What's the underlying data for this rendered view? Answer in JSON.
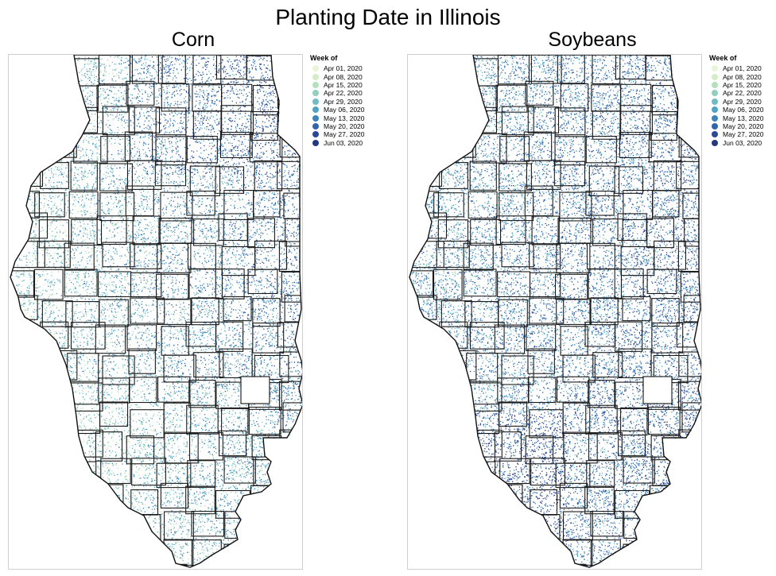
{
  "title": "Planting Date in Illinois",
  "legend_title": "Week of",
  "legend_items": [
    {
      "label": "Apr 01, 2020",
      "color": "#e9f5d9"
    },
    {
      "label": "Apr 08, 2020",
      "color": "#d3edc5"
    },
    {
      "label": "Apr 15, 2020",
      "color": "#b5e0bd"
    },
    {
      "label": "Apr 22, 2020",
      "color": "#92cfc0"
    },
    {
      "label": "Apr 29, 2020",
      "color": "#6fbcc4"
    },
    {
      "label": "May 06, 2020",
      "color": "#51a3c6"
    },
    {
      "label": "May 13, 2020",
      "color": "#3d84bd"
    },
    {
      "label": "May 20, 2020",
      "color": "#3265ab"
    },
    {
      "label": "May 27, 2020",
      "color": "#2a4a97"
    },
    {
      "label": "Jun 03, 2020",
      "color": "#233880"
    }
  ],
  "panels": [
    {
      "title": "Corn"
    },
    {
      "title": "Soybeans"
    }
  ]
}
